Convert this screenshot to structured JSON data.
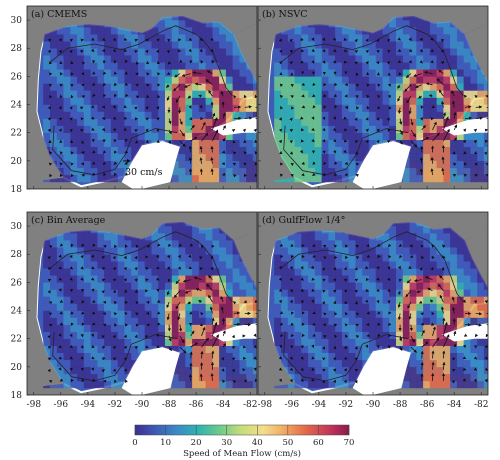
{
  "panels": [
    {
      "label": "(a) CMEMS"
    },
    {
      "label": "(b) NSVC"
    },
    {
      "label": "(c) Bin Average"
    },
    {
      "label": "(d) GulfFlow 1/4°"
    }
  ],
  "scale_arrow_label": "30 cm/s",
  "axes": {
    "x_ticks": [
      "-98",
      "-96",
      "-94",
      "-92",
      "-90",
      "-88",
      "-86",
      "-84",
      "-82"
    ],
    "y_ticks": [
      "30",
      "28",
      "26",
      "24",
      "22",
      "20",
      "18"
    ]
  },
  "colorbar": {
    "title": "Speed of Mean Flow (cm/s)",
    "ticks": [
      "0",
      "10",
      "20",
      "30",
      "40",
      "50",
      "60",
      "70"
    ],
    "range": [
      0,
      70
    ],
    "colors": [
      "#3b2f8f",
      "#3f5bb8",
      "#3a8cc6",
      "#2fb5b0",
      "#6fcc88",
      "#c9dd7a",
      "#f3de8a",
      "#f0a860",
      "#e2684a",
      "#c8385a",
      "#8c1a4e"
    ]
  },
  "colors": {
    "land": "#ffffff",
    "shelf": "#7a7a7a",
    "arrow": "#111111"
  }
}
